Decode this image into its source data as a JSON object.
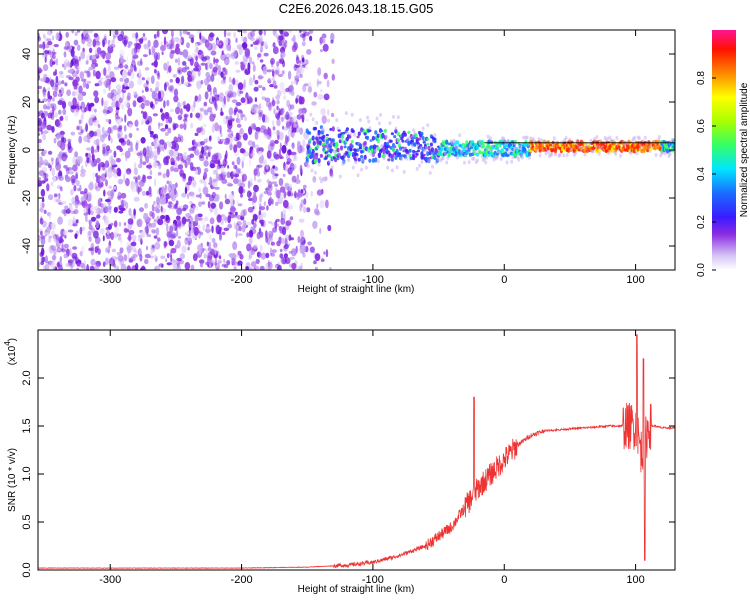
{
  "title": "C2E6.2026.043.18.15.G05",
  "chart_data": [
    {
      "type": "heatmap",
      "xlabel": "Height of straight line (km)",
      "ylabel": "Frequency (Hz)",
      "xlim": [
        -355,
        130
      ],
      "ylim": [
        -50,
        50
      ],
      "xticks": [
        "-300",
        "-200",
        "-100",
        "0",
        "100"
      ],
      "yticks": [
        "-40",
        "-20",
        "0",
        "20",
        "40"
      ],
      "colorbar": {
        "label": "Normalized spectral amplitude",
        "range": [
          0,
          1
        ],
        "ticks": [
          "0.0",
          "0.2",
          "0.4",
          "0.6",
          "0.8"
        ]
      },
      "grid": false
    },
    {
      "type": "line",
      "xlabel": "Height of straight line (km)",
      "ylabel": "SNR (10 * v/v)",
      "yscale_label": "(x10",
      "yscale_exp": "4",
      "yscale_close": ")",
      "xlim": [
        -355,
        130
      ],
      "ylim": [
        0,
        2.5
      ],
      "xticks": [
        "-300",
        "-200",
        "-100",
        "0",
        "100"
      ],
      "yticks": [
        "0.0",
        "0.5",
        "1.0",
        "1.5",
        "2.0"
      ],
      "color": "#ee3333",
      "series_profile": {
        "x": [
          -355,
          -300,
          -200,
          -150,
          -120,
          -100,
          -80,
          -60,
          -40,
          -30,
          -25,
          -20,
          -10,
          0,
          10,
          20,
          30,
          50,
          80,
          90,
          100,
          105,
          110,
          115,
          120,
          130
        ],
        "y": [
          0.02,
          0.02,
          0.02,
          0.03,
          0.05,
          0.08,
          0.15,
          0.25,
          0.45,
          0.65,
          0.75,
          0.85,
          1.0,
          1.15,
          1.3,
          1.4,
          1.45,
          1.47,
          1.5,
          1.5,
          1.5,
          1.2,
          1.5,
          1.5,
          1.48,
          1.48
        ]
      },
      "spikes": [
        {
          "x": -23,
          "y": 1.8
        },
        {
          "x": 101,
          "y": 2.45
        },
        {
          "x": 106,
          "y": 2.2
        },
        {
          "x": 107,
          "y": 0.1
        }
      ],
      "grid": false
    }
  ]
}
